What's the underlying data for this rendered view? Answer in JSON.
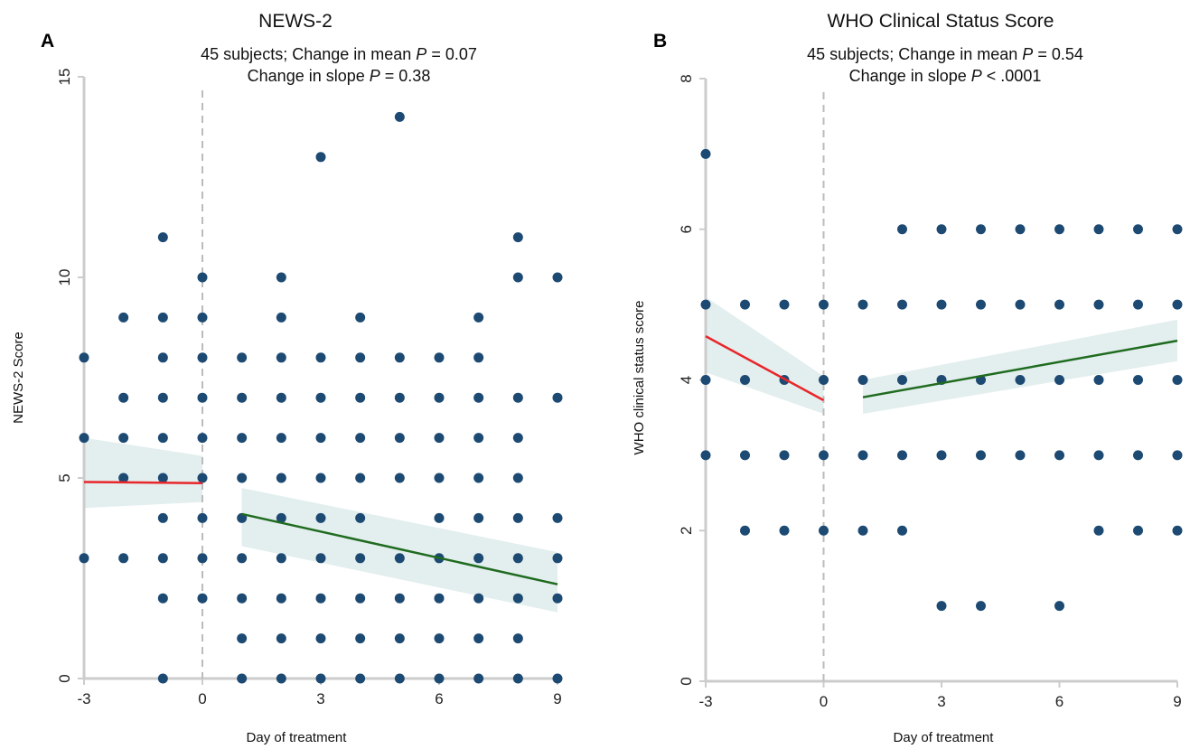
{
  "chart_data": [
    {
      "type": "scatter",
      "panel_label": "A",
      "title": "NEWS-2",
      "subtitle": {
        "line1_prefix": "45 subjects; Change in mean ",
        "line1_p": "P",
        "line1_suffix": " = 0.07",
        "line2_prefix": "Change in slope ",
        "line2_p": "P",
        "line2_suffix": " = 0.38"
      },
      "xlabel": "Day of treatment",
      "ylabel": "NEWS-2 Score",
      "xlim": [
        -3,
        9
      ],
      "ylim": [
        0,
        15
      ],
      "xticks": [
        "-3",
        "0",
        "3",
        "6",
        "9"
      ],
      "yticks": [
        "0",
        "5",
        "10",
        "15"
      ],
      "xtick_values": [
        -3,
        0,
        3,
        6,
        9
      ],
      "ytick_values": [
        0,
        5,
        10,
        15
      ],
      "grid": false,
      "reference_line_x": 0,
      "points": [
        [
          -3,
          3
        ],
        [
          -3,
          6
        ],
        [
          -3,
          8
        ],
        [
          -2,
          3
        ],
        [
          -2,
          5
        ],
        [
          -2,
          6
        ],
        [
          -2,
          7
        ],
        [
          -2,
          9
        ],
        [
          -1,
          0
        ],
        [
          -1,
          2
        ],
        [
          -1,
          3
        ],
        [
          -1,
          4
        ],
        [
          -1,
          5
        ],
        [
          -1,
          6
        ],
        [
          -1,
          7
        ],
        [
          -1,
          8
        ],
        [
          -1,
          9
        ],
        [
          -1,
          11
        ],
        [
          0,
          2
        ],
        [
          0,
          3
        ],
        [
          0,
          4
        ],
        [
          0,
          5
        ],
        [
          0,
          6
        ],
        [
          0,
          7
        ],
        [
          0,
          8
        ],
        [
          0,
          9
        ],
        [
          0,
          10
        ],
        [
          1,
          0
        ],
        [
          1,
          1
        ],
        [
          1,
          2
        ],
        [
          1,
          3
        ],
        [
          1,
          4
        ],
        [
          1,
          5
        ],
        [
          1,
          6
        ],
        [
          1,
          7
        ],
        [
          1,
          8
        ],
        [
          2,
          0
        ],
        [
          2,
          1
        ],
        [
          2,
          2
        ],
        [
          2,
          3
        ],
        [
          2,
          4
        ],
        [
          2,
          5
        ],
        [
          2,
          6
        ],
        [
          2,
          7
        ],
        [
          2,
          8
        ],
        [
          2,
          9
        ],
        [
          2,
          10
        ],
        [
          3,
          0
        ],
        [
          3,
          1
        ],
        [
          3,
          2
        ],
        [
          3,
          3
        ],
        [
          3,
          4
        ],
        [
          3,
          5
        ],
        [
          3,
          6
        ],
        [
          3,
          7
        ],
        [
          3,
          8
        ],
        [
          3,
          13
        ],
        [
          4,
          0
        ],
        [
          4,
          1
        ],
        [
          4,
          2
        ],
        [
          4,
          3
        ],
        [
          4,
          4
        ],
        [
          4,
          5
        ],
        [
          4,
          6
        ],
        [
          4,
          7
        ],
        [
          4,
          8
        ],
        [
          4,
          9
        ],
        [
          5,
          0
        ],
        [
          5,
          1
        ],
        [
          5,
          2
        ],
        [
          5,
          3
        ],
        [
          5,
          5
        ],
        [
          5,
          6
        ],
        [
          5,
          7
        ],
        [
          5,
          8
        ],
        [
          5,
          14
        ],
        [
          6,
          0
        ],
        [
          6,
          1
        ],
        [
          6,
          2
        ],
        [
          6,
          3
        ],
        [
          6,
          4
        ],
        [
          6,
          5
        ],
        [
          6,
          6
        ],
        [
          6,
          7
        ],
        [
          6,
          8
        ],
        [
          7,
          0
        ],
        [
          7,
          1
        ],
        [
          7,
          2
        ],
        [
          7,
          3
        ],
        [
          7,
          4
        ],
        [
          7,
          5
        ],
        [
          7,
          6
        ],
        [
          7,
          7
        ],
        [
          7,
          8
        ],
        [
          7,
          9
        ],
        [
          8,
          0
        ],
        [
          8,
          1
        ],
        [
          8,
          2
        ],
        [
          8,
          3
        ],
        [
          8,
          4
        ],
        [
          8,
          5
        ],
        [
          8,
          6
        ],
        [
          8,
          7
        ],
        [
          8,
          10
        ],
        [
          8,
          11
        ],
        [
          9,
          0
        ],
        [
          9,
          2
        ],
        [
          9,
          3
        ],
        [
          9,
          4
        ],
        [
          9,
          7
        ],
        [
          9,
          10
        ]
      ],
      "fit_pre": {
        "color": "#e8262a",
        "x": [
          -3,
          0
        ],
        "y": [
          4.9,
          4.87
        ],
        "ci_lower": [
          4.25,
          4.4
        ],
        "ci_upper": [
          6.0,
          5.55
        ]
      },
      "fit_post": {
        "color": "#1f6b1f",
        "x": [
          1,
          9
        ],
        "y": [
          4.1,
          2.35
        ],
        "ci_lower": [
          3.3,
          1.65
        ],
        "ci_upper": [
          4.75,
          3.15
        ]
      },
      "colors": {
        "points": "#1d4a73",
        "ci_band": "#e3eeee",
        "axis": "#cccccc",
        "refline": "#bbbbbb"
      }
    },
    {
      "type": "scatter",
      "panel_label": "B",
      "title": "WHO Clinical Status Score",
      "subtitle": {
        "line1_prefix": "45 subjects; Change in mean ",
        "line1_p": "P",
        "line1_suffix": " = 0.54",
        "line2_prefix": "Change in slope ",
        "line2_p": "P",
        "line2_suffix": " < .0001"
      },
      "xlabel": "Day of treatment",
      "ylabel": "WHO clinical status score",
      "xlim": [
        -3,
        9
      ],
      "ylim": [
        0,
        8
      ],
      "xticks": [
        "-3",
        "0",
        "3",
        "6",
        "9"
      ],
      "yticks": [
        "0",
        "2",
        "4",
        "6",
        "8"
      ],
      "xtick_values": [
        -3,
        0,
        3,
        6,
        9
      ],
      "ytick_values": [
        0,
        2,
        4,
        6,
        8
      ],
      "grid": false,
      "reference_line_x": 0,
      "points": [
        [
          -3,
          3
        ],
        [
          -3,
          4
        ],
        [
          -3,
          5
        ],
        [
          -3,
          7
        ],
        [
          -2,
          2
        ],
        [
          -2,
          3
        ],
        [
          -2,
          4
        ],
        [
          -2,
          5
        ],
        [
          -1,
          2
        ],
        [
          -1,
          3
        ],
        [
          -1,
          4
        ],
        [
          -1,
          5
        ],
        [
          0,
          2
        ],
        [
          0,
          3
        ],
        [
          0,
          4
        ],
        [
          0,
          5
        ],
        [
          1,
          2
        ],
        [
          1,
          3
        ],
        [
          1,
          4
        ],
        [
          1,
          5
        ],
        [
          2,
          2
        ],
        [
          2,
          3
        ],
        [
          2,
          4
        ],
        [
          2,
          5
        ],
        [
          2,
          6
        ],
        [
          3,
          1
        ],
        [
          3,
          3
        ],
        [
          3,
          4
        ],
        [
          3,
          5
        ],
        [
          3,
          6
        ],
        [
          4,
          1
        ],
        [
          4,
          3
        ],
        [
          4,
          4
        ],
        [
          4,
          5
        ],
        [
          4,
          6
        ],
        [
          5,
          3
        ],
        [
          5,
          4
        ],
        [
          5,
          5
        ],
        [
          5,
          6
        ],
        [
          6,
          1
        ],
        [
          6,
          3
        ],
        [
          6,
          4
        ],
        [
          6,
          5
        ],
        [
          6,
          6
        ],
        [
          7,
          2
        ],
        [
          7,
          3
        ],
        [
          7,
          4
        ],
        [
          7,
          5
        ],
        [
          7,
          6
        ],
        [
          8,
          2
        ],
        [
          8,
          3
        ],
        [
          8,
          4
        ],
        [
          8,
          5
        ],
        [
          8,
          6
        ],
        [
          9,
          2
        ],
        [
          9,
          3
        ],
        [
          9,
          4
        ],
        [
          9,
          5
        ],
        [
          9,
          6
        ]
      ],
      "fit_pre": {
        "color": "#e8262a",
        "x": [
          -3,
          0
        ],
        "y": [
          4.58,
          3.73
        ],
        "ci_lower": [
          4.1,
          3.55
        ],
        "ci_upper": [
          5.1,
          4.05
        ]
      },
      "fit_post": {
        "color": "#1f6b1f",
        "x": [
          1,
          9
        ],
        "y": [
          3.77,
          4.52
        ],
        "ci_lower": [
          3.55,
          4.25
        ],
        "ci_upper": [
          4.0,
          4.8
        ]
      },
      "colors": {
        "points": "#1d4a73",
        "ci_band": "#e3eeee",
        "axis": "#cccccc",
        "refline": "#bbbbbb"
      }
    }
  ]
}
